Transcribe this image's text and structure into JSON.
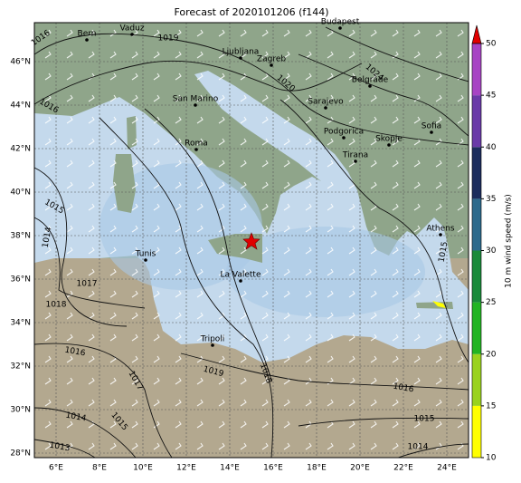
{
  "title": "Forecast of 2020101206 (f144)",
  "lat_labels": [
    "28°N",
    "30°N",
    "32°N",
    "34°N",
    "36°N",
    "38°N",
    "40°N",
    "42°N",
    "44°N",
    "46°N"
  ],
  "lon_labels": [
    "6°E",
    "8°E",
    "10°E",
    "12°E",
    "14°E",
    "16°E",
    "18°E",
    "20°E",
    "22°E",
    "24°E"
  ],
  "cities": [
    "Bern",
    "Vaduz",
    "Budapest",
    "Ljubljana",
    "Zagreb",
    "Belgrade",
    "San Marino",
    "Sarajevo",
    "Sofia",
    "Podgorica",
    "Skopje",
    "Roma",
    "Tirana",
    "Athens",
    "Tunis",
    "La Valette",
    "Tripoli"
  ],
  "isobar_labels": [
    "1016",
    "1019",
    "1020",
    "1024",
    "1016",
    "1015",
    "1014",
    "1017",
    "1018",
    "1016",
    "1019",
    "1018",
    "1017",
    "1014",
    "1015",
    "1013",
    "1016",
    "1015",
    "1014",
    "1015"
  ],
  "colorbar": {
    "label": "10 m wind speed (m/s)",
    "ticks": [
      10,
      15,
      20,
      25,
      30,
      35,
      40,
      45,
      50
    ],
    "colors": [
      "#ffff00",
      "#9ad21e",
      "#22b422",
      "#1a8a3a",
      "#2c6a8c",
      "#1c2c5c",
      "#6a3aa8",
      "#a744c4"
    ],
    "extend_color": "#e00000"
  }
}
